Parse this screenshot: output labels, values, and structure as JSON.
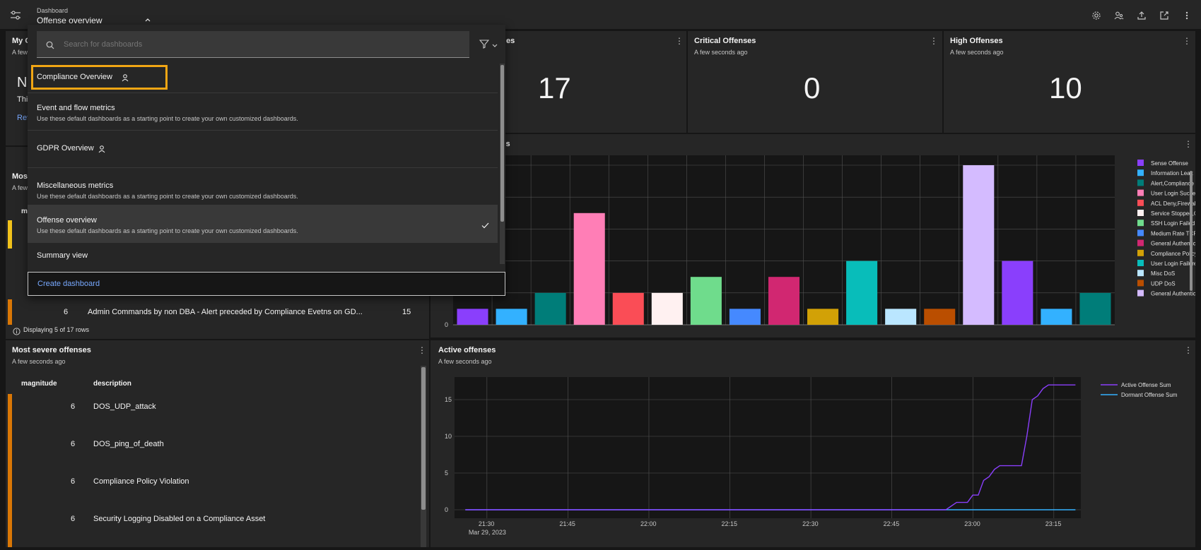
{
  "header": {
    "breadcrumb": "Dashboard",
    "title": "Offense overview"
  },
  "tiles": {
    "my_offenses": {
      "title": "My O",
      "sub": "A few",
      "no_text": "No",
      "this_text": "Thi",
      "ref_link": "Ref"
    },
    "total_offenses": {
      "title_tail": "es",
      "value": "17"
    },
    "critical": {
      "title": "Critical Offenses",
      "sub": "A few seconds ago",
      "value": "0"
    },
    "high": {
      "title": "High Offenses",
      "sub": "A few seconds ago",
      "value": "10"
    },
    "categories": {
      "title_tail": "ries"
    },
    "most_recent": {
      "title": "Most",
      "sub": "A few",
      "col_tail": "m",
      "row": {
        "magnitude": "6",
        "description": "Admin Commands by non DBA - Alert preceded by Compliance Evetns on GD...",
        "count": "15"
      },
      "footer": "Displaying 5 of 17 rows"
    },
    "most_severe": {
      "title": "Most severe offenses",
      "sub": "A few seconds ago",
      "col_magnitude": "magnitude",
      "col_description": "description",
      "rows": [
        {
          "magnitude": "6",
          "description": "DOS_UDP_attack"
        },
        {
          "magnitude": "6",
          "description": "DOS_ping_of_death"
        },
        {
          "magnitude": "6",
          "description": "Compliance Policy Violation"
        },
        {
          "magnitude": "6",
          "description": "Security Logging Disabled on a Compliance Asset"
        }
      ]
    },
    "active": {
      "title": "Active offenses",
      "sub": "A few seconds ago"
    }
  },
  "dropdown": {
    "search_placeholder": "Search for dashboards",
    "items": [
      {
        "title": "Compliance Overview",
        "desc": "",
        "shared": true,
        "selected": false
      },
      {
        "title": "Event and flow metrics",
        "desc": "Use these default dashboards as a starting point to create your own customized dashboards.",
        "shared": false,
        "selected": false
      },
      {
        "title": "GDPR Overview",
        "desc": "",
        "shared": true,
        "selected": false
      },
      {
        "title": "Miscellaneous metrics",
        "desc": "Use these default dashboards as a starting point to create your own customized dashboards.",
        "shared": false,
        "selected": false
      },
      {
        "title": "Offense overview",
        "desc": "Use these default dashboards as a starting point to create your own customized dashboards.",
        "shared": false,
        "selected": true
      },
      {
        "title": "Summary view",
        "desc": "",
        "shared": false,
        "selected": false
      }
    ],
    "create_label": "Create dashboard"
  },
  "icons": {
    "toolbar": [
      "settings-icon",
      "share-users-icon",
      "export-icon",
      "launch-icon",
      "overflow-menu-icon"
    ]
  },
  "chart_data": [
    {
      "type": "bar",
      "title": "",
      "ylim": [
        0,
        10
      ],
      "yticks_visible": [
        "0"
      ],
      "categories": [
        "Sense Offense",
        "Information Leak",
        "Alert,Compliance Policy Vio...",
        "User Login Success,Suspicio...",
        "ACL Deny,Firewall Deny",
        "Service Stopped,Compliance ...",
        "SSH Login Failed,User Login...",
        "Medium Rate TCP Scan",
        "General Authentication Fail...",
        "Compliance Policy Violation",
        "User Login Failure,SSH Logi...",
        "Misc DoS",
        "UDP DoS",
        "General Authentication Fail...",
        "Sense Offense",
        "Information Leak",
        "Alert,Compliance Policy Vio..."
      ],
      "values": [
        1,
        1,
        2,
        7,
        2,
        2,
        3,
        1,
        3,
        1,
        4,
        1,
        1,
        10,
        4,
        1,
        2
      ],
      "colors": [
        "#8a3ffc",
        "#33b1ff",
        "#007d79",
        "#ff7eb6",
        "#fa4d56",
        "#fff1f1",
        "#6fdc8c",
        "#4589ff",
        "#d12771",
        "#d2a106",
        "#08bdba",
        "#bae6ff",
        "#ba4e00",
        "#d4bbff",
        "#8a3ffc",
        "#33b1ff",
        "#007d79"
      ],
      "legend": [
        {
          "label": "Sense Offense",
          "color": "#8a3ffc"
        },
        {
          "label": "Information Leak",
          "color": "#33b1ff"
        },
        {
          "label": "Alert,Compliance Policy Vio...",
          "color": "#007d79"
        },
        {
          "label": "User Login Success,Suspicio...",
          "color": "#ff7eb6"
        },
        {
          "label": "ACL Deny,Firewall Deny",
          "color": "#fa4d56"
        },
        {
          "label": "Service Stopped,Compliance ...",
          "color": "#fff1f1"
        },
        {
          "label": "SSH Login Failed,User Login...",
          "color": "#6fdc8c"
        },
        {
          "label": "Medium Rate TCP Scan",
          "color": "#4589ff"
        },
        {
          "label": "General Authentication Fail...",
          "color": "#d12771"
        },
        {
          "label": "Compliance Policy Violation",
          "color": "#d2a106"
        },
        {
          "label": "User Login Failure,SSH Logi...",
          "color": "#08bdba"
        },
        {
          "label": "Misc DoS",
          "color": "#bae6ff"
        },
        {
          "label": "UDP DoS",
          "color": "#ba4e00"
        },
        {
          "label": "General Authentication Fail...",
          "color": "#d4bbff"
        }
      ],
      "grid": true,
      "legend_position": "right"
    },
    {
      "type": "line",
      "title": "Active offenses",
      "x_ticks": [
        "21:30",
        "21:45",
        "22:00",
        "22:15",
        "22:30",
        "22:45",
        "23:00",
        "23:15"
      ],
      "x_date_label": "Mar 29, 2023",
      "y_ticks": [
        "0",
        "5",
        "10",
        "15"
      ],
      "ylim": [
        0,
        17.5
      ],
      "x": [
        "21:26",
        "22:55",
        "22:57",
        "22:59",
        "23:00",
        "23:01",
        "23:02",
        "23:03",
        "23:04",
        "23:05",
        "23:06",
        "23:07",
        "23:08",
        "23:09",
        "23:10",
        "23:11",
        "23:12",
        "23:13",
        "23:14",
        "23:15",
        "23:16",
        "23:17",
        "23:18",
        "23:19"
      ],
      "series": [
        {
          "name": "Active Offense Sum",
          "color": "#8a3ffc",
          "values": [
            0,
            0,
            1,
            1,
            2,
            2,
            4,
            4.5,
            5.5,
            6,
            6,
            6,
            6,
            6,
            10,
            15,
            15.5,
            16.5,
            17,
            17,
            17,
            17,
            17,
            17
          ]
        },
        {
          "name": "Dormant Offense Sum",
          "color": "#33b1ff",
          "values": [
            0,
            0,
            0,
            0,
            0,
            0,
            0,
            0,
            0,
            0,
            0,
            0,
            0,
            0,
            0,
            0,
            0,
            0,
            0,
            0,
            0,
            0,
            0,
            0
          ]
        }
      ],
      "grid": true,
      "legend_position": "right"
    }
  ]
}
